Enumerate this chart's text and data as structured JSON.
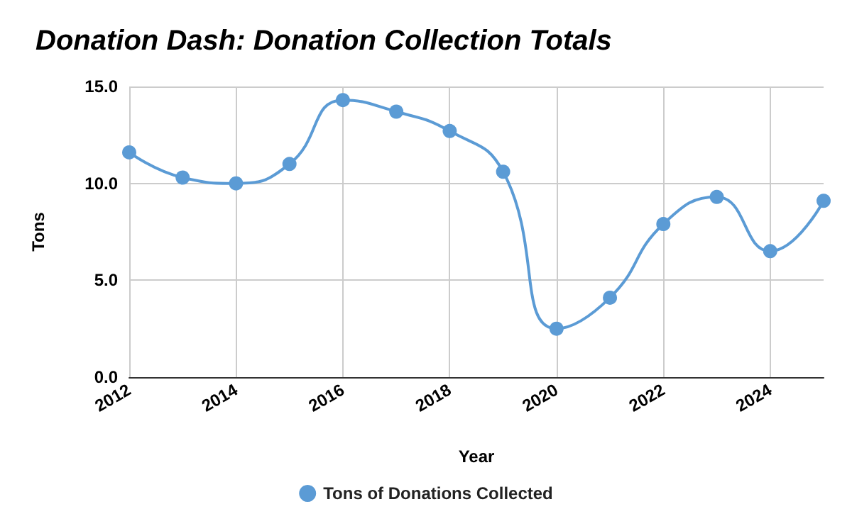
{
  "chart_data": {
    "type": "line",
    "title": "Donation Dash: Donation Collection Totals",
    "xlabel": "Year",
    "ylabel": "Tons",
    "x": [
      2012,
      2013,
      2014,
      2015,
      2016,
      2017,
      2018,
      2019,
      2020,
      2021,
      2022,
      2023,
      2024,
      2025
    ],
    "series": [
      {
        "name": "Tons of Donations Collected",
        "color": "#5b9bd5",
        "values": [
          11.6,
          10.3,
          10.0,
          11.0,
          14.3,
          13.7,
          12.7,
          10.6,
          2.5,
          4.1,
          7.9,
          9.3,
          6.5,
          9.1
        ]
      }
    ],
    "xlim": [
      2012,
      2025
    ],
    "xticks": [
      2012,
      2014,
      2016,
      2018,
      2020,
      2022,
      2024
    ],
    "ylim": [
      0,
      15
    ],
    "yticks": [
      {
        "value": 0,
        "label": "0.0"
      },
      {
        "value": 5,
        "label": "5.0"
      },
      {
        "value": 10,
        "label": "10.0"
      },
      {
        "value": 15,
        "label": "15.0"
      }
    ],
    "grid": true,
    "legend": "bottom",
    "marker": "circle",
    "line_style": "solid"
  }
}
